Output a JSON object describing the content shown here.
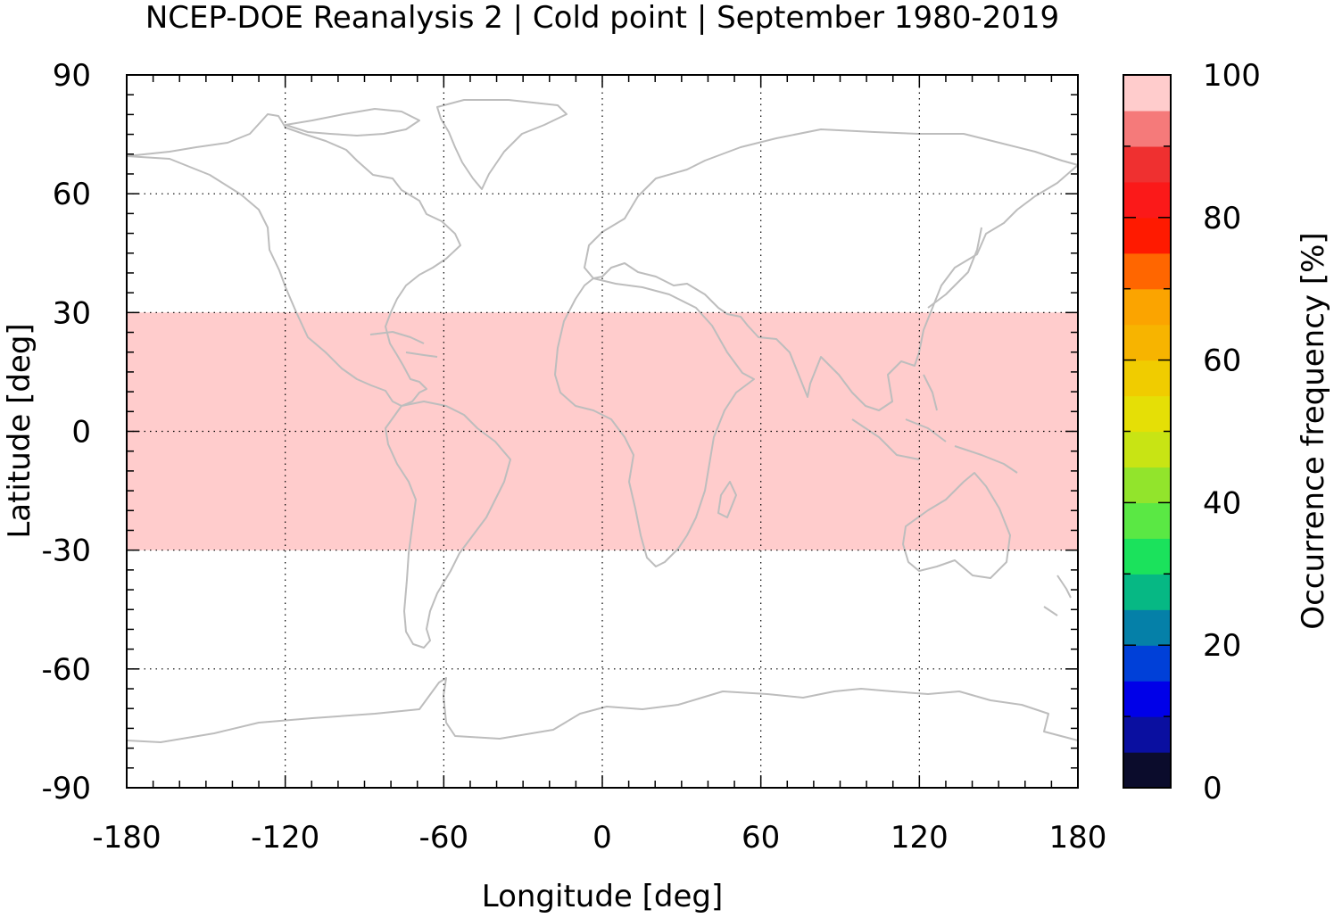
{
  "chart_data": {
    "type": "heatmap",
    "title": "NCEP-DOE Reanalysis 2 | Cold point | September 1980-2019",
    "xlabel": "Longitude [deg]",
    "ylabel": "Latitude [deg]",
    "xlim": [
      -180,
      180
    ],
    "ylim": [
      -90,
      90
    ],
    "xticks": [
      -180,
      -120,
      -60,
      0,
      60,
      120,
      180
    ],
    "xtick_labels": [
      "-180",
      "-120",
      "-60",
      "0",
      "60",
      "120",
      "180"
    ],
    "yticks": [
      90,
      60,
      30,
      0,
      -30,
      -60,
      -90
    ],
    "ytick_labels": [
      "90",
      "60",
      "30",
      "0",
      "-30",
      "-60",
      "-90"
    ],
    "grid": true,
    "background_layer": "coastlines",
    "coastline_color": "#bdbdbd",
    "regions": [
      {
        "lon_range": [
          -180,
          180
        ],
        "lat_range": [
          -30,
          30
        ],
        "value": 100,
        "color": "#ffcccc"
      }
    ],
    "colorbar": {
      "label": "Occurrence frequency [%]",
      "range": [
        0,
        100
      ],
      "ticks": [
        0,
        20,
        40,
        60,
        80,
        100
      ],
      "tick_labels": [
        "0",
        "20",
        "40",
        "60",
        "80",
        "100"
      ],
      "colors": [
        "#0b0c2c",
        "#0a0fa0",
        "#0000e8",
        "#0040d8",
        "#0580a8",
        "#06b884",
        "#1be25c",
        "#5ae844",
        "#92e42c",
        "#c8e414",
        "#e5df06",
        "#f0cc00",
        "#f7b400",
        "#fba400",
        "#ff6600",
        "#ff1a00",
        "#fb1919",
        "#ef3030",
        "#f57a7a",
        "#ffcccc"
      ]
    }
  }
}
